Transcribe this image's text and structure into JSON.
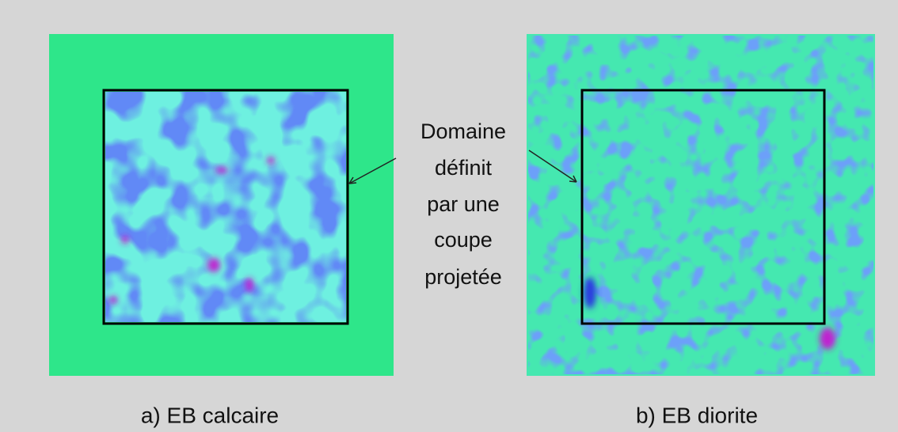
{
  "annotation": {
    "lines": [
      "Domaine",
      "définit",
      "par une",
      "coupe",
      "projetée"
    ]
  },
  "panels": [
    {
      "caption": "a) EB calcaire"
    },
    {
      "caption": "b) EB diorite"
    }
  ]
}
